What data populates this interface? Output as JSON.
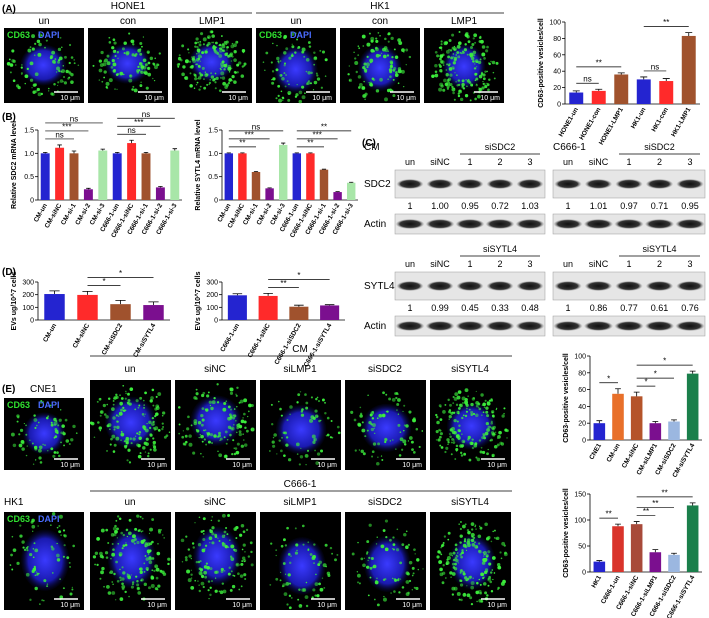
{
  "figure": {
    "A": {
      "label": "(A)",
      "stain": {
        "green": "CD63",
        "blue": "DAPI"
      },
      "scale_bar": "10 μm",
      "groups": [
        {
          "name": "HONE1",
          "columns": [
            "un",
            "con",
            "LMP1"
          ]
        },
        {
          "name": "HK1",
          "columns": [
            "un",
            "con",
            "LMP1"
          ]
        }
      ]
    },
    "B": {
      "label": "(B)"
    },
    "C": {
      "label": "(C)",
      "blots": [
        {
          "cell": "CM",
          "treatment": "siSDC2",
          "lanes": [
            "un",
            "siNC",
            "1",
            "2",
            "3"
          ],
          "target": "SDC2",
          "loading": "Actin",
          "quant": [
            "1",
            "1.00",
            "0.95",
            "0.72",
            "1.03"
          ]
        },
        {
          "cell": "C666-1",
          "treatment": "siSDC2",
          "lanes": [
            "un",
            "siNC",
            "1",
            "2",
            "3"
          ],
          "quant": [
            "1",
            "1.01",
            "0.97",
            "0.71",
            "0.95"
          ]
        },
        {
          "treatment": "siSYTL4",
          "lanes": [
            "un",
            "siNC",
            "1",
            "2",
            "3"
          ],
          "target": "SYTL4",
          "loading": "Actin",
          "quant": [
            "1",
            "0.99",
            "0.45",
            "0.33",
            "0.48"
          ]
        },
        {
          "treatment": "siSYTL4",
          "lanes": [
            "un",
            "siNC",
            "1",
            "2",
            "3"
          ],
          "quant": [
            "1",
            "0.86",
            "0.77",
            "0.61",
            "0.76"
          ]
        }
      ]
    },
    "D": {
      "label": "(D)"
    },
    "E": {
      "label": "(E)",
      "rows": [
        {
          "cell": "CNE1",
          "group": "CM",
          "columns": [
            "un",
            "siNC",
            "siLMP1",
            "siSDC2",
            "siSYTL4"
          ]
        },
        {
          "cell": "HK1",
          "group": "C666-1",
          "columns": [
            "un",
            "siNC",
            "siLMP1",
            "siSDC2",
            "siSYTL4"
          ]
        }
      ]
    }
  },
  "chart_data": [
    {
      "type": "bar",
      "y_label": "CD63-positive vesicles/cell",
      "categories": [
        "HONE1-un",
        "HONE1-con",
        "HONE1-LMP1",
        "HK1-un",
        "HK1-con",
        "HK1-LMP1"
      ],
      "values": [
        14,
        16,
        36,
        30,
        28,
        83
      ],
      "errors": [
        2,
        2,
        2,
        3,
        3,
        4
      ],
      "colors": [
        "#2424d0",
        "#ff2a2a",
        "#a0522d",
        "#2424d0",
        "#ff2a2a",
        "#a0522d"
      ],
      "ylim": [
        0,
        100
      ],
      "yticks": [
        0,
        20,
        40,
        60,
        80,
        100
      ],
      "annotations": [
        {
          "text": "ns",
          "between": [
            "HONE1-un",
            "HONE1-con"
          ]
        },
        {
          "text": "**",
          "between": [
            "HONE1-un",
            "HONE1-LMP1"
          ]
        },
        {
          "text": "ns",
          "between": [
            "HK1-un",
            "HK1-con"
          ]
        },
        {
          "text": "**",
          "between": [
            "HK1-un",
            "HK1-LMP1"
          ]
        }
      ]
    },
    {
      "type": "bar",
      "y_label": "Relative SDC2 mRNA level",
      "categories": [
        "CM-un",
        "CM-siNC",
        "CM-si-1",
        "CM-si-2",
        "CM-si-3",
        "C666-1-un",
        "C666-1-siNC",
        "C666-1-si-1",
        "C666-1-si-2",
        "C666-1-si-3"
      ],
      "values": [
        1.0,
        1.12,
        1.0,
        0.23,
        1.06,
        1.0,
        1.22,
        1.0,
        0.27,
        1.06
      ],
      "errors": [
        0.02,
        0.06,
        0.05,
        0.02,
        0.03,
        0.02,
        0.06,
        0.02,
        0.02,
        0.04
      ],
      "colors": [
        "#2424d0",
        "#ff2a2a",
        "#a0522d",
        "#7b0f8f",
        "#a8e6a8",
        "#2424d0",
        "#ff2a2a",
        "#a0522d",
        "#7b0f8f",
        "#a8e6a8"
      ],
      "ylim": [
        0,
        1.5
      ],
      "yticks": [
        0,
        0.5,
        {
          "value": 1,
          "label": "1.0"
        },
        1.5
      ],
      "annotations": [
        {
          "text": "ns",
          "between": [
            "CM-un",
            "CM-si-1"
          ]
        },
        {
          "text": "***",
          "between": [
            "CM-un",
            "CM-si-2"
          ]
        },
        {
          "text": "ns",
          "between": [
            "CM-un",
            "CM-si-3"
          ]
        },
        {
          "text": "ns",
          "between": [
            "C666-1-un",
            "C666-1-si-1"
          ]
        },
        {
          "text": "***",
          "between": [
            "C666-1-un",
            "C666-1-si-2"
          ]
        },
        {
          "text": "ns",
          "between": [
            "C666-1-un",
            "C666-1-si-3"
          ]
        }
      ]
    },
    {
      "type": "bar",
      "y_label": "Relative SYTL4 mRNA level",
      "categories": [
        "CM-un",
        "CM-siNC",
        "CM-si-1",
        "CM-si-2",
        "CM-si-3",
        "C666-1-un",
        "C666-1-siNC",
        "C666-1-si-1",
        "C666-1-si-2",
        "C666-1-si-3"
      ],
      "values": [
        1.0,
        1.0,
        0.6,
        0.25,
        1.18,
        1.0,
        1.0,
        0.65,
        0.17,
        0.37
      ],
      "errors": [
        0.01,
        0.01,
        0.01,
        0.01,
        0.04,
        0.01,
        0.01,
        0.01,
        0.01,
        0.01
      ],
      "colors": [
        "#2424d0",
        "#ff2a2a",
        "#a0522d",
        "#7b0f8f",
        "#a8e6a8",
        "#2424d0",
        "#ff2a2a",
        "#a0522d",
        "#7b0f8f",
        "#a8e6a8"
      ],
      "ylim": [
        0,
        1.5
      ],
      "yticks": [
        0,
        0.5,
        {
          "value": 1,
          "label": "1.0"
        },
        1.5
      ],
      "annotations": [
        {
          "text": "**",
          "between": [
            "CM-un",
            "CM-si-1"
          ]
        },
        {
          "text": "***",
          "between": [
            "CM-un",
            "CM-si-2"
          ]
        },
        {
          "text": "ns",
          "between": [
            "CM-un",
            "CM-si-3"
          ]
        },
        {
          "text": "**",
          "between": [
            "C666-1-un",
            "C666-1-si-1"
          ]
        },
        {
          "text": "***",
          "between": [
            "C666-1-un",
            "C666-1-si-2"
          ]
        },
        {
          "text": "**",
          "between": [
            "C666-1-un",
            "C666-1-si-3"
          ]
        }
      ]
    },
    {
      "type": "bar",
      "y_label": "EVs ug/10^7 cells",
      "categories": [
        "CM-un",
        "CM-siNC",
        "CM-siSDC2",
        "CM-siSYTL4"
      ],
      "values": [
        205,
        198,
        125,
        118
      ],
      "errors": [
        25,
        28,
        30,
        25
      ],
      "colors": [
        "#2424d0",
        "#ff2a2a",
        "#a0522d",
        "#7b0f8f"
      ],
      "ylim": [
        0,
        300
      ],
      "yticks": [
        0,
        100,
        200,
        300
      ],
      "annotations": [
        {
          "text": "*",
          "between": [
            "CM-siNC",
            "CM-siSDC2"
          ]
        },
        {
          "text": "*",
          "between": [
            "CM-siNC",
            "CM-siSYTL4"
          ]
        }
      ]
    },
    {
      "type": "bar",
      "y_label": "EVs ug/10^7 cells",
      "categories": [
        "C666-1-un",
        "C666-1-siNC",
        "C666-1-siSDC2",
        "C666-1-siSYTL4"
      ],
      "values": [
        195,
        190,
        105,
        115
      ],
      "errors": [
        12,
        20,
        12,
        6
      ],
      "colors": [
        "#2424d0",
        "#ff2a2a",
        "#a0522d",
        "#7b0f8f"
      ],
      "ylim": [
        0,
        300
      ],
      "yticks": [
        0,
        100,
        200,
        300
      ],
      "annotations": [
        {
          "text": "**",
          "between": [
            "C666-1-siNC",
            "C666-1-siSDC2"
          ]
        },
        {
          "text": "*",
          "between": [
            "C666-1-siNC",
            "C666-1-siSYTL4"
          ]
        }
      ]
    },
    {
      "type": "bar",
      "y_label": "CD63-positive vesicles/cell",
      "categories": [
        "CNE1",
        "CM-un",
        "CM-siNC",
        "CM-siLMP1",
        "CM-siSDC2",
        "CM-siSYTL4"
      ],
      "values": [
        20,
        55,
        52,
        20,
        22,
        79
      ],
      "errors": [
        3,
        6,
        5,
        2,
        2,
        3
      ],
      "colors": [
        "#2424d0",
        "#e8702a",
        "#b5542a",
        "#7b0f8f",
        "#9bb7e0",
        "#1a7f4b"
      ],
      "ylim": [
        0,
        100
      ],
      "yticks": [
        0,
        20,
        40,
        60,
        80,
        100
      ],
      "annotations": [
        {
          "text": "*",
          "between": [
            "CNE1",
            "CM-un"
          ]
        },
        {
          "text": "*",
          "between": [
            "CM-siNC",
            "CM-siLMP1"
          ]
        },
        {
          "text": "*",
          "between": [
            "CM-siNC",
            "CM-siSDC2"
          ]
        },
        {
          "text": "*",
          "between": [
            "CM-siNC",
            "CM-siSYTL4"
          ]
        }
      ]
    },
    {
      "type": "bar",
      "y_label": "CD63-positive vesicles/cell",
      "categories": [
        "HK1",
        "C666-1-un",
        "C666-1-siNC",
        "C666-1-siLMP1",
        "C666-1-siSDC2",
        "C666-1-siSYTL4"
      ],
      "values": [
        20,
        88,
        92,
        38,
        33,
        128
      ],
      "errors": [
        2,
        4,
        5,
        5,
        3,
        5
      ],
      "colors": [
        "#2424d0",
        "#d9342b",
        "#a84a3a",
        "#7b0f8f",
        "#9bb7e0",
        "#1a7f4b"
      ],
      "ylim": [
        0,
        150
      ],
      "yticks": [
        0,
        50,
        100,
        150
      ],
      "annotations": [
        {
          "text": "**",
          "between": [
            "HK1",
            "C666-1-un"
          ]
        },
        {
          "text": "**",
          "between": [
            "C666-1-siNC",
            "C666-1-siLMP1"
          ]
        },
        {
          "text": "**",
          "between": [
            "C666-1-siNC",
            "C666-1-siSDC2"
          ]
        },
        {
          "text": "**",
          "between": [
            "C666-1-siNC",
            "C666-1-siSYTL4"
          ]
        }
      ]
    }
  ]
}
